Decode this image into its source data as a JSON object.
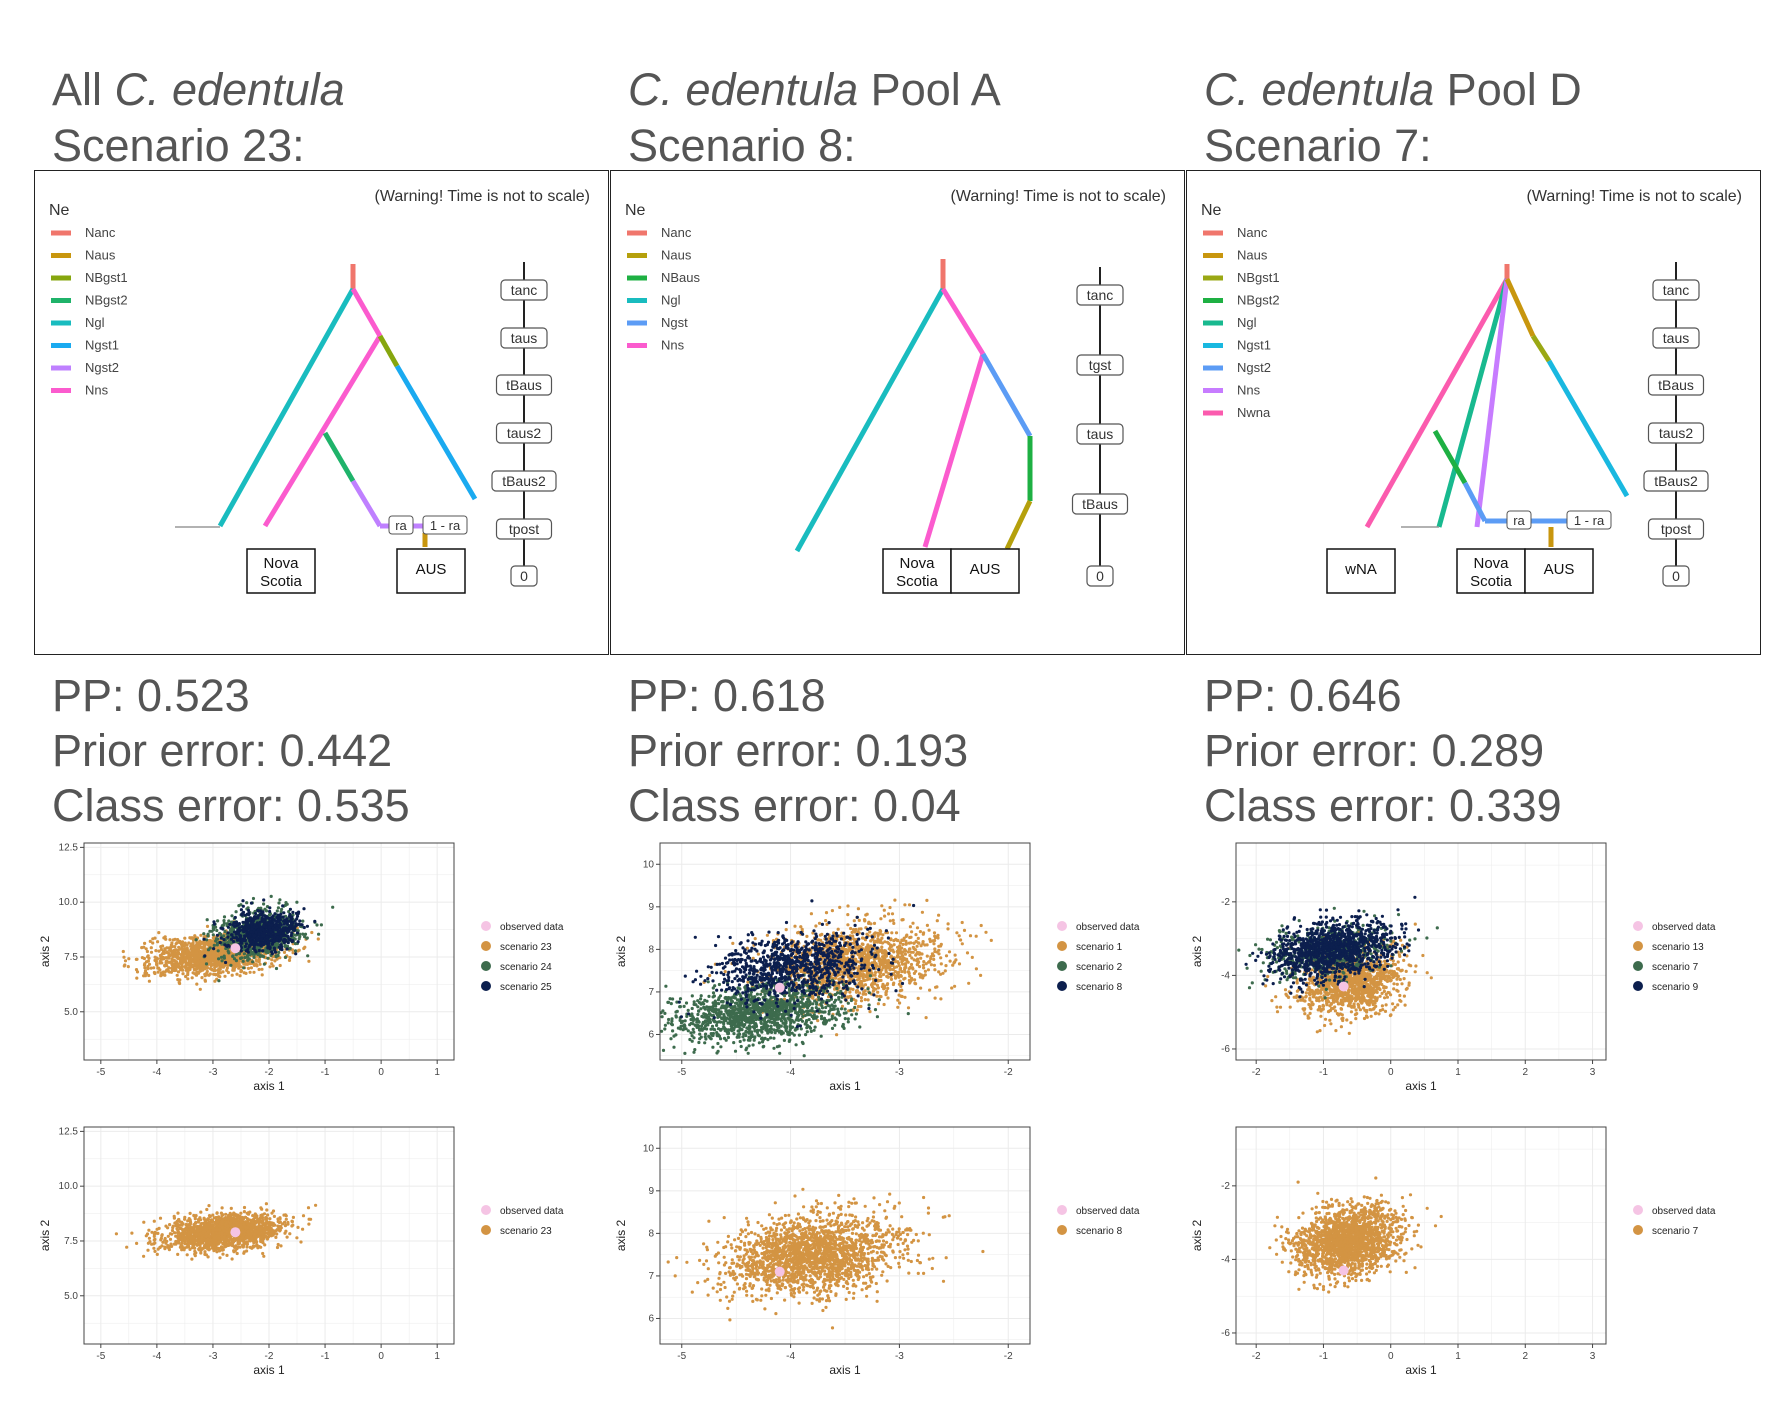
{
  "columns": [
    {
      "title_pre": "All ",
      "title_italic": "C. edentula",
      "title_post": "",
      "scenario_label": "Scenario 23:",
      "diagram": {
        "warning": "(Warning! Time is not to scale)",
        "legend_title": "Ne",
        "legend": [
          {
            "name": "Nanc",
            "color": "#f0766c"
          },
          {
            "name": "Naus",
            "color": "#c8960e"
          },
          {
            "name": "NBgst1",
            "color": "#86a60e"
          },
          {
            "name": "NBgst2",
            "color": "#1fb36a"
          },
          {
            "name": "Ngl",
            "color": "#19bcbf"
          },
          {
            "name": "Ngst1",
            "color": "#1aaaf0"
          },
          {
            "name": "Ngst2",
            "color": "#bf80ff"
          },
          {
            "name": "Nns",
            "color": "#fb5bce"
          }
        ],
        "time_labels": [
          "tanc",
          "taus",
          "tBaus",
          "taus2",
          "tBaus2",
          "tpost",
          "0"
        ],
        "admix_labels": [
          "ra",
          "1 - ra"
        ],
        "populations": [
          "Nova Scotia",
          "AUS"
        ]
      },
      "stats": {
        "pp": "PP: 0.523",
        "prior": "Prior error: 0.442",
        "class": "Class error: 0.535"
      },
      "plots": [
        {
          "type": "scatter",
          "xlabel": "axis 1",
          "ylabel": "axis 2",
          "xlim": [
            -5.3,
            1.3
          ],
          "ylim": [
            2.8,
            12.7
          ],
          "xticks": [
            "-5",
            "-4",
            "-3",
            "-2",
            "-1",
            "0",
            "1"
          ],
          "yticks": [
            "5.0",
            "7.5",
            "10.0",
            "12.5"
          ],
          "legend": [
            "observed data",
            "scenario 23",
            "scenario 24",
            "scenario 25"
          ],
          "observed": [
            -2.6,
            7.9
          ],
          "clouds": [
            {
              "color": "#d39443",
              "cx": -3.0,
              "cy": 7.6,
              "sx": 0.55,
              "sy": 0.45,
              "n": 1400
            },
            {
              "color": "#3d6b4d",
              "cx": -2.2,
              "cy": 8.5,
              "sx": 0.38,
              "sy": 0.55,
              "n": 800
            },
            {
              "color": "#0c1f4e",
              "cx": -2.1,
              "cy": 8.7,
              "sx": 0.32,
              "sy": 0.42,
              "n": 650
            }
          ]
        },
        {
          "type": "scatter",
          "xlabel": "axis 1",
          "ylabel": "axis 2",
          "xlim": [
            -5.3,
            1.3
          ],
          "ylim": [
            2.8,
            12.7
          ],
          "xticks": [
            "-5",
            "-4",
            "-3",
            "-2",
            "-1",
            "0",
            "1"
          ],
          "yticks": [
            "5.0",
            "7.5",
            "10.0",
            "12.5"
          ],
          "legend": [
            "observed data",
            "scenario 23"
          ],
          "observed": [
            -2.6,
            7.9
          ],
          "clouds": [
            {
              "color": "#d39443",
              "cx": -2.8,
              "cy": 7.9,
              "sx": 0.5,
              "sy": 0.4,
              "n": 1600
            }
          ]
        }
      ]
    },
    {
      "title_pre": "",
      "title_italic": "C. edentula",
      "title_post": " Pool A",
      "scenario_label": "Scenario 8:",
      "diagram": {
        "warning": "(Warning! Time is not to scale)",
        "legend_title": "Ne",
        "legend": [
          {
            "name": "Nanc",
            "color": "#f0766c"
          },
          {
            "name": "Naus",
            "color": "#b5a00c"
          },
          {
            "name": "NBaus",
            "color": "#1eb043"
          },
          {
            "name": "Ngl",
            "color": "#19bcbf"
          },
          {
            "name": "Ngst",
            "color": "#5c9cf5"
          },
          {
            "name": "Nns",
            "color": "#fb5bce"
          }
        ],
        "time_labels": [
          "tanc",
          "tgst",
          "taus",
          "tBaus",
          "0"
        ],
        "admix_labels": [],
        "populations": [
          "Nova Scotia",
          "AUS"
        ]
      },
      "stats": {
        "pp": "PP: 0.618",
        "prior": "Prior error: 0.193",
        "class": "Class error: 0.04"
      },
      "plots": [
        {
          "type": "scatter",
          "xlabel": "axis 1",
          "ylabel": "axis 2",
          "xlim": [
            -5.2,
            -1.8
          ],
          "ylim": [
            5.4,
            10.5
          ],
          "xticks": [
            "-5",
            "-4",
            "-3",
            "-2"
          ],
          "yticks": [
            "6",
            "7",
            "8",
            "9",
            "10"
          ],
          "legend": [
            "observed data",
            "scenario 1",
            "scenario 2",
            "scenario 8"
          ],
          "observed": [
            -4.1,
            7.1
          ],
          "clouds": [
            {
              "color": "#d39443",
              "cx": -3.4,
              "cy": 7.7,
              "sx": 0.4,
              "sy": 0.45,
              "n": 1400
            },
            {
              "color": "#3d6b4d",
              "cx": -4.3,
              "cy": 6.5,
              "sx": 0.4,
              "sy": 0.32,
              "n": 1300
            },
            {
              "color": "#0c1f4e",
              "cx": -4.0,
              "cy": 7.6,
              "sx": 0.35,
              "sy": 0.4,
              "n": 900
            }
          ]
        },
        {
          "type": "scatter",
          "xlabel": "axis 1",
          "ylabel": "axis 2",
          "xlim": [
            -5.2,
            -1.8
          ],
          "ylim": [
            5.4,
            10.5
          ],
          "xticks": [
            "-5",
            "-4",
            "-3",
            "-2"
          ],
          "yticks": [
            "6",
            "7",
            "8",
            "9",
            "10"
          ],
          "legend": [
            "observed data",
            "scenario 8"
          ],
          "observed": [
            -4.1,
            7.1
          ],
          "clouds": [
            {
              "color": "#d39443",
              "cx": -3.8,
              "cy": 7.5,
              "sx": 0.4,
              "sy": 0.45,
              "n": 1900
            }
          ]
        }
      ]
    },
    {
      "title_pre": "",
      "title_italic": "C. edentula",
      "title_post": " Pool D",
      "scenario_label": "Scenario 7:",
      "diagram": {
        "warning": "(Warning! Time is not to scale)",
        "legend_title": "Ne",
        "legend": [
          {
            "name": "Nanc",
            "color": "#f0766c"
          },
          {
            "name": "Naus",
            "color": "#c8960e"
          },
          {
            "name": "NBgst1",
            "color": "#9aa814"
          },
          {
            "name": "NBgst2",
            "color": "#1eb043"
          },
          {
            "name": "Ngl",
            "color": "#18b98f"
          },
          {
            "name": "Ngst1",
            "color": "#19b8e0"
          },
          {
            "name": "Ngst2",
            "color": "#5c9cf5"
          },
          {
            "name": "Nns",
            "color": "#c77cff"
          },
          {
            "name": "Nwna",
            "color": "#fb5bae"
          }
        ],
        "time_labels": [
          "tanc",
          "taus",
          "tBaus",
          "taus2",
          "tBaus2",
          "tpost",
          "0"
        ],
        "admix_labels": [
          "ra",
          "1 - ra"
        ],
        "populations": [
          "wNA",
          "Nova Scotia",
          "AUS"
        ]
      },
      "stats": {
        "pp": "PP: 0.646",
        "prior": "Prior error: 0.289",
        "class": "Class error: 0.339"
      },
      "plots": [
        {
          "type": "scatter",
          "xlabel": "axis 1",
          "ylabel": "axis 2",
          "xlim": [
            -2.3,
            3.2
          ],
          "ylim": [
            -6.3,
            -0.4
          ],
          "xticks": [
            "-2",
            "-1",
            "0",
            "1",
            "2",
            "3"
          ],
          "yticks": [
            "-6",
            "-4",
            "-2"
          ],
          "legend": [
            "observed data",
            "scenario 13",
            "scenario 7",
            "scenario 9"
          ],
          "observed": [
            -0.7,
            -4.3
          ],
          "clouds": [
            {
              "color": "#d39443",
              "cx": -0.6,
              "cy": -4.2,
              "sx": 0.38,
              "sy": 0.45,
              "n": 1200
            },
            {
              "color": "#3d6b4d",
              "cx": -0.9,
              "cy": -3.4,
              "sx": 0.45,
              "sy": 0.35,
              "n": 500
            },
            {
              "color": "#0c1f4e",
              "cx": -0.85,
              "cy": -3.3,
              "sx": 0.45,
              "sy": 0.38,
              "n": 1100
            }
          ]
        },
        {
          "type": "scatter",
          "xlabel": "axis 1",
          "ylabel": "axis 2",
          "xlim": [
            -2.3,
            3.2
          ],
          "ylim": [
            -6.3,
            -0.4
          ],
          "xticks": [
            "-2",
            "-1",
            "0",
            "1",
            "2",
            "3"
          ],
          "yticks": [
            "-6",
            "-4",
            "-2"
          ],
          "legend": [
            "observed data",
            "scenario 7"
          ],
          "observed": [
            -0.7,
            -4.3
          ],
          "clouds": [
            {
              "color": "#d39443",
              "cx": -0.65,
              "cy": -3.5,
              "sx": 0.38,
              "sy": 0.45,
              "n": 1800
            }
          ]
        }
      ]
    }
  ],
  "colors": {
    "observed": "#f5c4e4",
    "axis_text": "#444444",
    "grid": "#ebebeb"
  }
}
